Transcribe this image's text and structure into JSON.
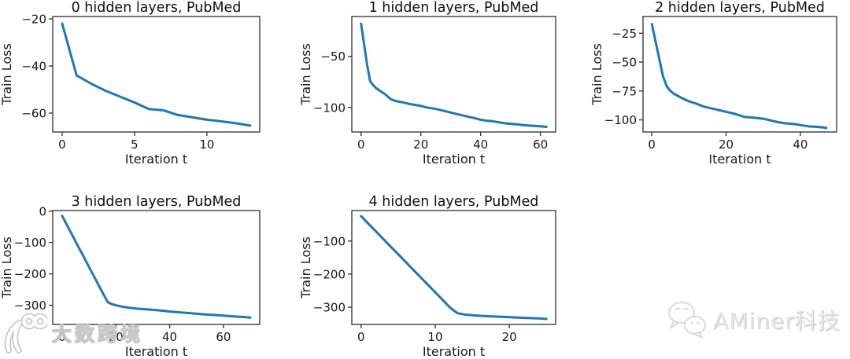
{
  "figure": {
    "background": "#ffffff",
    "line_color": "#1f77b4",
    "spine_color": "#3c3c3c",
    "text_color": "#1a1a1a"
  },
  "chart_data": [
    {
      "type": "line",
      "title": "0 hidden layers, PubMed",
      "xlabel": "Iteration t",
      "ylabel": "Train Loss",
      "color": "#1f77b4",
      "grid": false,
      "legend": null,
      "xlim": [
        -0.65,
        13.65
      ],
      "ylim": [
        -68,
        -19
      ],
      "xticks": [
        0,
        5,
        10
      ],
      "yticks": [
        -20,
        -40,
        -60
      ],
      "x": [
        0,
        1,
        2,
        3,
        4,
        5,
        6,
        7,
        8,
        9,
        10,
        11,
        12,
        13
      ],
      "y": [
        -22,
        -44,
        -47.5,
        -50.5,
        -53,
        -55.5,
        -58.3,
        -58.8,
        -60.8,
        -61.8,
        -62.8,
        -63.5,
        -64.3,
        -65.3
      ]
    },
    {
      "type": "line",
      "title": "1 hidden layers, PubMed",
      "xlabel": "Iteration t",
      "ylabel": "Train Loss",
      "color": "#1f77b4",
      "grid": false,
      "legend": null,
      "xlim": [
        -3.1,
        65.1
      ],
      "ylim": [
        -124,
        -11
      ],
      "xticks": [
        0,
        20,
        40,
        60
      ],
      "yticks": [
        -50,
        -100
      ],
      "x": [
        0,
        1,
        2,
        3,
        4,
        5,
        6,
        8,
        10,
        12,
        14,
        16,
        18,
        20,
        22,
        25,
        28,
        30,
        32,
        35,
        38,
        40,
        42,
        44,
        46,
        48,
        50,
        52,
        55,
        58,
        60,
        62
      ],
      "y": [
        -18,
        -38,
        -58,
        -74,
        -78,
        -81,
        -83,
        -87,
        -92,
        -94,
        -95,
        -96.5,
        -97.5,
        -98.5,
        -100,
        -101.5,
        -103.5,
        -105,
        -106.5,
        -108.5,
        -110.5,
        -112,
        -113,
        -113.5,
        -114.5,
        -115.5,
        -116,
        -116.5,
        -117.5,
        -118,
        -118.5,
        -119
      ]
    },
    {
      "type": "line",
      "title": "2 hidden layers, PubMed",
      "xlabel": "Iteration t",
      "ylabel": "Train Loss",
      "color": "#1f77b4",
      "grid": false,
      "legend": null,
      "xlim": [
        -2.37,
        49.77
      ],
      "ylim": [
        -110.5,
        -10.5
      ],
      "xticks": [
        0,
        20,
        40
      ],
      "yticks": [
        -25,
        -50,
        -75,
        -100
      ],
      "x": [
        0,
        1,
        2,
        3,
        4,
        5,
        6,
        8,
        10,
        12,
        14,
        16,
        18,
        20,
        22,
        23,
        25,
        27,
        30,
        32,
        34,
        36,
        38,
        40,
        42,
        44,
        46,
        47
      ],
      "y": [
        -17,
        -32,
        -47,
        -62,
        -71,
        -75,
        -77.5,
        -81,
        -84,
        -86,
        -88.5,
        -90,
        -91.5,
        -93,
        -94.5,
        -95.5,
        -97.5,
        -98,
        -99,
        -100.5,
        -102,
        -103,
        -103.5,
        -104.5,
        -105.5,
        -106,
        -106.5,
        -107
      ]
    },
    {
      "type": "line",
      "title": "3 hidden layers, PubMed",
      "xlabel": "Iteration t",
      "ylabel": "Train Loss",
      "color": "#1f77b4",
      "grid": false,
      "legend": null,
      "xlim": [
        -3.5,
        73.5
      ],
      "ylim": [
        -361,
        2
      ],
      "xticks": [
        0,
        20,
        40,
        60
      ],
      "yticks": [
        0,
        -100,
        -200,
        -300
      ],
      "x": [
        0,
        2,
        4,
        6,
        8,
        10,
        12,
        14,
        16,
        17,
        18,
        20,
        22,
        25,
        28,
        30,
        33,
        35,
        38,
        40,
        43,
        45,
        48,
        50,
        53,
        55,
        58,
        60,
        63,
        65,
        68,
        70
      ],
      "y": [
        -15,
        -48,
        -80,
        -113,
        -145,
        -178,
        -210,
        -243,
        -275,
        -290,
        -295,
        -300,
        -304,
        -308,
        -311,
        -312,
        -314,
        -315.5,
        -318,
        -320,
        -322,
        -323.5,
        -325.5,
        -327,
        -329,
        -330,
        -331.5,
        -333,
        -335,
        -336,
        -337.5,
        -339
      ]
    },
    {
      "type": "line",
      "title": "4 hidden layers, PubMed",
      "xlabel": "Iteration t",
      "ylabel": "Train Loss",
      "color": "#1f77b4",
      "grid": false,
      "legend": null,
      "xlim": [
        -1.25,
        26.25
      ],
      "ylim": [
        -352,
        -8
      ],
      "xticks": [
        0,
        10,
        20
      ],
      "yticks": [
        -100,
        -200,
        -300
      ],
      "x": [
        0,
        2,
        4,
        6,
        8,
        10,
        12,
        13,
        14,
        15,
        16,
        18,
        20,
        22,
        24,
        25
      ],
      "y": [
        -25,
        -71,
        -117,
        -163,
        -209,
        -255,
        -301,
        -318,
        -322,
        -324,
        -326,
        -328,
        -330,
        -332,
        -334,
        -335.5
      ]
    }
  ],
  "watermarks": {
    "bottom_left": {
      "logo": "dashu-kuajing-100-logo",
      "text": "大数跨境"
    },
    "bottom_right": {
      "icon": "wechat-chat-bubbles-icon",
      "text": "AMiner科技"
    }
  }
}
